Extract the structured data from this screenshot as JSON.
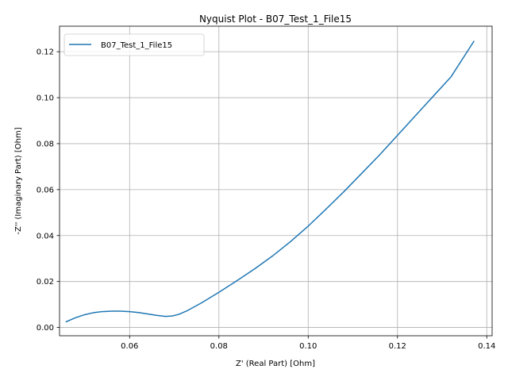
{
  "chart_data": {
    "type": "line",
    "title": "Nyquist Plot - B07_Test_1_File15",
    "xlabel": "Z' (Real Part) [Ohm]",
    "ylabel": "-Z'' (Imaginary Part) [Ohm]",
    "xlim": [
      0.0443,
      0.1412
    ],
    "ylim": [
      -0.0036,
      0.1311
    ],
    "xticks": [
      0.06,
      0.08,
      0.1,
      0.12,
      0.14
    ],
    "xtick_labels": [
      "0.06",
      "0.08",
      "0.10",
      "0.12",
      "0.14"
    ],
    "yticks": [
      0.0,
      0.02,
      0.04,
      0.06,
      0.08,
      0.1,
      0.12
    ],
    "ytick_labels": [
      "0.00",
      "0.02",
      "0.04",
      "0.06",
      "0.08",
      "0.10",
      "0.12"
    ],
    "grid": true,
    "legend": "top-left",
    "color": "#1f77b4",
    "series": [
      {
        "name": "B07_Test_1_File15",
        "x": [
          0.0458,
          0.0478,
          0.0498,
          0.0518,
          0.0538,
          0.056,
          0.058,
          0.06,
          0.062,
          0.064,
          0.066,
          0.068,
          0.0695,
          0.071,
          0.073,
          0.076,
          0.08,
          0.084,
          0.088,
          0.092,
          0.096,
          0.1,
          0.104,
          0.108,
          0.112,
          0.116,
          0.12,
          0.124,
          0.128,
          0.132,
          0.1371
        ],
        "y": [
          0.0025,
          0.0042,
          0.0055,
          0.0064,
          0.0069,
          0.0071,
          0.0071,
          0.0069,
          0.0065,
          0.0059,
          0.0053,
          0.0048,
          0.005,
          0.0057,
          0.0074,
          0.0106,
          0.0153,
          0.0203,
          0.0255,
          0.0311,
          0.0373,
          0.0441,
          0.0515,
          0.0591,
          0.0671,
          0.0751,
          0.0836,
          0.0921,
          0.1006,
          0.1091,
          0.1245
        ]
      }
    ]
  }
}
